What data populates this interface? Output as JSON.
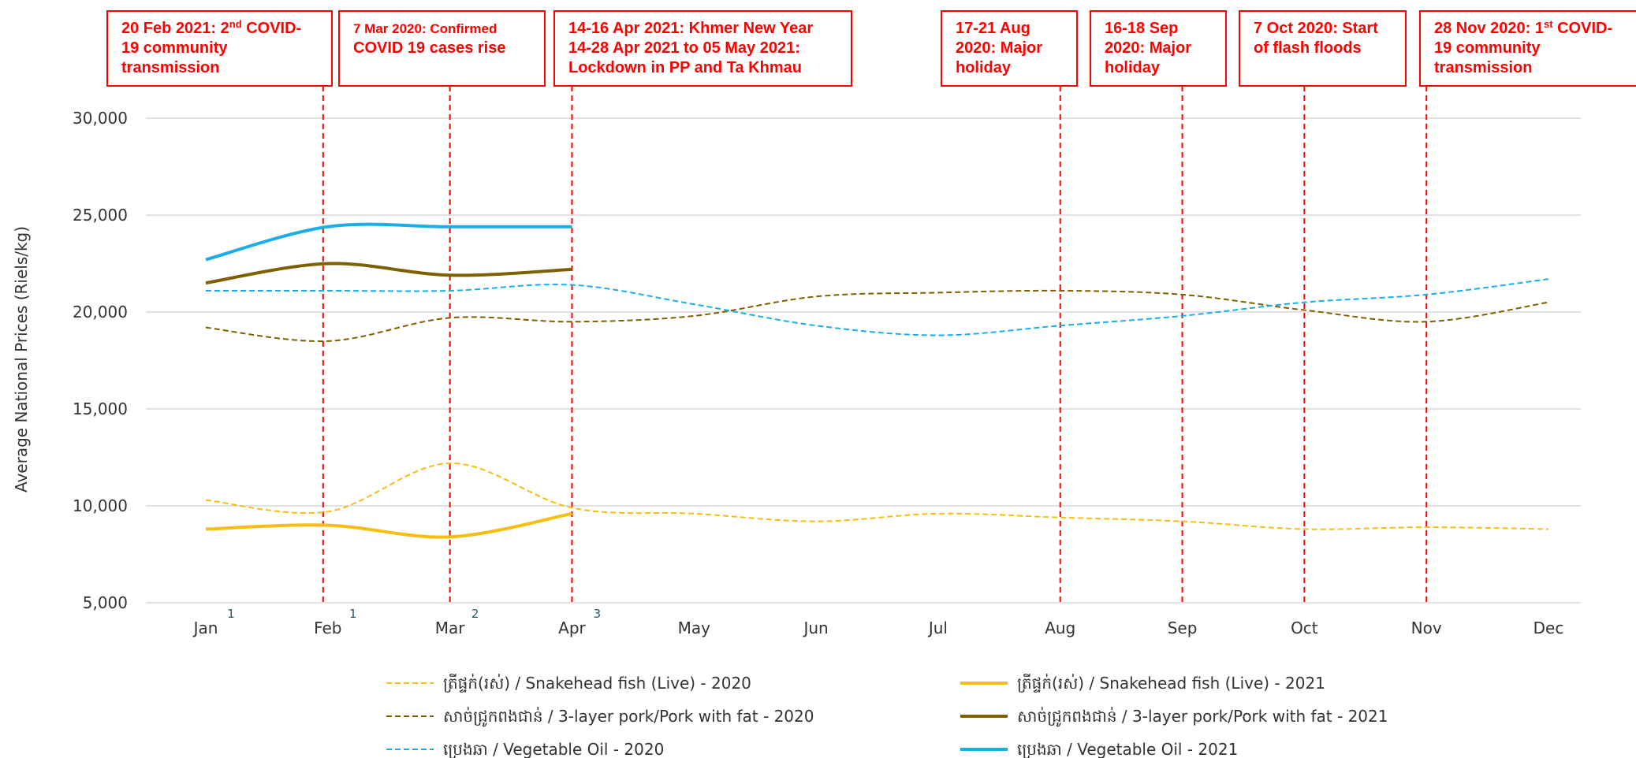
{
  "chart_data": {
    "type": "line",
    "y_label": "Average National Prices (Riels/kg)",
    "categories": [
      "Jan",
      "Feb",
      "Mar",
      "Apr",
      "May",
      "Jun",
      "Jul",
      "Aug",
      "Sep",
      "Oct",
      "Nov",
      "Dec"
    ],
    "footnote_markers": [
      1,
      1,
      2,
      3
    ],
    "ylim": [
      5000,
      30000
    ],
    "yticks": [
      {
        "value": 5000,
        "label": "5,000"
      },
      {
        "value": 10000,
        "label": "10,000"
      },
      {
        "value": 15000,
        "label": "15,000"
      },
      {
        "value": 20000,
        "label": "20,000"
      },
      {
        "value": 25000,
        "label": "25,000"
      },
      {
        "value": 30000,
        "label": "30,000"
      }
    ],
    "grid": true,
    "series": [
      {
        "name": "ត្រីផ្ទក់(រស់) / Snakehead fish (Live) - 2020",
        "color": "#f7bd10",
        "dashed": true,
        "values": [
          10300,
          9700,
          12200,
          9900,
          9600,
          9200,
          9600,
          9400,
          9200,
          8800,
          8900,
          8800
        ]
      },
      {
        "name": "ត្រីផ្ទក់(រស់) / Snakehead fish (Live) - 2021",
        "color": "#f7bd10",
        "dashed": false,
        "values": [
          8800,
          9000,
          8400,
          9600,
          null,
          null,
          null,
          null,
          null,
          null,
          null,
          null
        ]
      },
      {
        "name": "សាច់ជ្រូកពងជាន់ /  3-layer pork/Pork with fat - 2020",
        "color": "#7f6000",
        "dashed": true,
        "values": [
          19200,
          18500,
          19700,
          19500,
          19800,
          20800,
          21000,
          21100,
          20900,
          20100,
          19500,
          20500
        ]
      },
      {
        "name": "សាច់ជ្រូកពងជាន់ /  3-layer pork/Pork with fat - 2021",
        "color": "#7f6000",
        "dashed": false,
        "values": [
          21500,
          22500,
          21900,
          22200,
          null,
          null,
          null,
          null,
          null,
          null,
          null,
          null
        ]
      },
      {
        "name": "ប្រេងឆា / Vegetable Oil - 2020",
        "color": "#1aaee8",
        "dashed": true,
        "values": [
          21100,
          21100,
          21100,
          21400,
          20400,
          19300,
          18800,
          19300,
          19800,
          20500,
          20900,
          21700
        ]
      },
      {
        "name": "ប្រេងឆា / Vegetable Oil - 2021",
        "color": "#1aaee8",
        "dashed": false,
        "values": [
          22700,
          24400,
          24400,
          24400,
          null,
          null,
          null,
          null,
          null,
          null,
          null,
          null
        ]
      }
    ],
    "annotations": [
      {
        "category": "Feb",
        "lines": [
          [
            "20 Feb 2021: 2",
            {
              "sup": "nd"
            },
            " COVID-"
          ],
          [
            "19 community"
          ],
          [
            "transmission"
          ]
        ]
      },
      {
        "category": "Mar",
        "lines": [
          [
            "7 Mar 2020: Confirmed"
          ],
          [
            "COVID 19 cases rise"
          ]
        ]
      },
      {
        "category": "Apr",
        "lines": [
          [
            "14-16 Apr 2021: Khmer New Year"
          ],
          [
            "14-28 Apr 2021 to 05 May 2021:"
          ],
          [
            "Lockdown in PP and Ta Khmau"
          ]
        ]
      },
      {
        "category": "Aug",
        "lines": [
          [
            "17-21 Aug"
          ],
          [
            "2020: Major"
          ],
          [
            "holiday"
          ]
        ]
      },
      {
        "category": "Sep",
        "lines": [
          [
            "16-18 Sep"
          ],
          [
            "2020: Major"
          ],
          [
            "holiday"
          ]
        ]
      },
      {
        "category": "Oct",
        "lines": [
          [
            "7 Oct 2020: Start"
          ],
          [
            "of flash floods"
          ]
        ]
      },
      {
        "category": "Nov",
        "lines": [
          [
            "28 Nov 2020: 1",
            {
              "sup": "st"
            },
            " COVID-"
          ],
          [
            "19 community"
          ],
          [
            "transmission"
          ]
        ]
      }
    ]
  }
}
